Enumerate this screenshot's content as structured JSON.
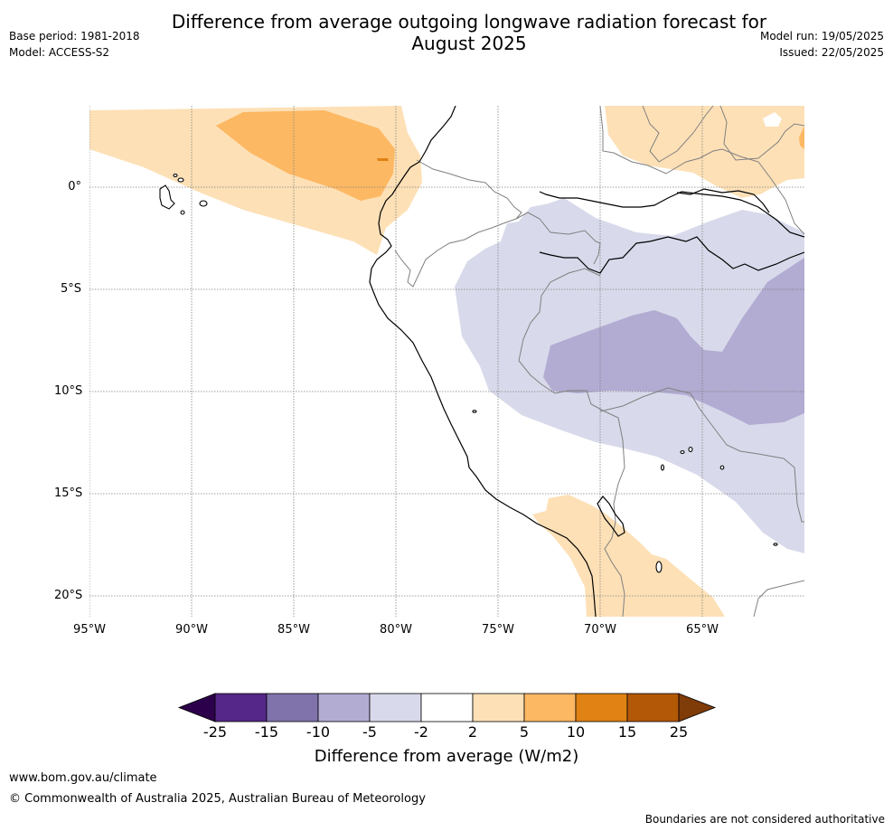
{
  "header": {
    "title_line1": "Difference from average outgoing longwave radiation forecast for",
    "title_line2": "August 2025",
    "base_period": "Base period: 1981-2018",
    "model": "Model: ACCESS-S2",
    "model_run": "Model run: 19/05/2025",
    "issued": "Issued: 22/05/2025"
  },
  "map": {
    "lat_labels": [
      "0°",
      "5°S",
      "10°S",
      "15°S",
      "20°S"
    ],
    "lon_labels": [
      "95°W",
      "90°W",
      "85°W",
      "80°W",
      "75°W",
      "70°W",
      "65°W"
    ],
    "colors": {
      "orange_light": "#fde0b6",
      "orange_mid": "#fdb863",
      "orange_dark": "#e08214",
      "purple_light": "#d8daeb",
      "purple_mid": "#b2abd2",
      "coastline": "#000000",
      "border": "#808080",
      "grid": "#808080"
    }
  },
  "colorbar": {
    "ticks": [
      "-25",
      "-15",
      "-10",
      "-5",
      "-2",
      "2",
      "5",
      "10",
      "15",
      "25"
    ],
    "colors": [
      "#2d004b",
      "#542788",
      "#8073ac",
      "#b2abd2",
      "#d8daeb",
      "#ffffff",
      "#fee0b6",
      "#fdb863",
      "#e08214",
      "#b35806",
      "#7f3b08"
    ],
    "label": "Difference from average (W/m2)"
  },
  "footer": {
    "website": "www.bom.gov.au/climate",
    "copyright": "© Commonwealth of Australia 2025, Australian Bureau of Meteorology",
    "disclaimer": "Boundaries are not considered authoritative"
  }
}
